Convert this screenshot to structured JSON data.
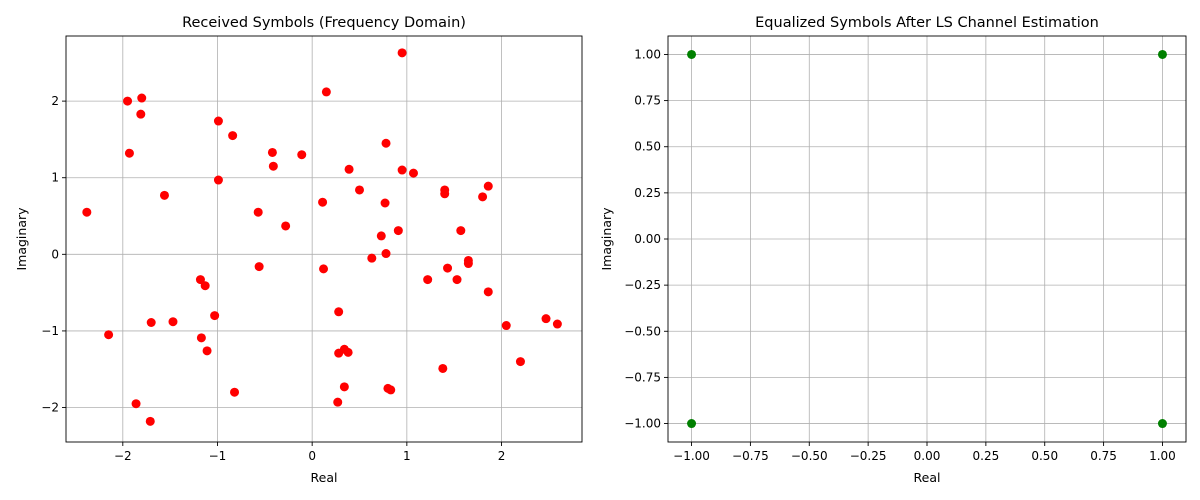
{
  "chart_data": [
    {
      "type": "scatter",
      "title": "Received Symbols (Frequency Domain)",
      "xlabel": "Real",
      "ylabel": "Imaginary",
      "xlim": [
        -2.6,
        2.85
      ],
      "ylim": [
        -2.45,
        2.85
      ],
      "xticks": [
        -2,
        -1,
        0,
        1,
        2
      ],
      "xtick_labels": [
        "−2",
        "−1",
        "0",
        "1",
        "2"
      ],
      "yticks": [
        -2,
        -1,
        0,
        1,
        2
      ],
      "ytick_labels": [
        "−2",
        "−1",
        "0",
        "1",
        "2"
      ],
      "grid": true,
      "color": "#ff0000",
      "points": [
        [
          -2.38,
          0.55
        ],
        [
          -2.15,
          -1.05
        ],
        [
          -1.95,
          2.0
        ],
        [
          -1.93,
          1.32
        ],
        [
          -1.8,
          2.04
        ],
        [
          -1.81,
          1.83
        ],
        [
          -1.86,
          -1.95
        ],
        [
          -1.7,
          -0.89
        ],
        [
          -1.71,
          -2.18
        ],
        [
          -1.56,
          0.77
        ],
        [
          -1.47,
          -0.88
        ],
        [
          -1.18,
          -0.33
        ],
        [
          -1.17,
          -1.09
        ],
        [
          -1.13,
          -0.41
        ],
        [
          -1.11,
          -1.26
        ],
        [
          -1.03,
          -0.8
        ],
        [
          -0.99,
          1.74
        ],
        [
          -0.99,
          0.97
        ],
        [
          -0.84,
          1.55
        ],
        [
          -0.82,
          -1.8
        ],
        [
          -0.57,
          0.55
        ],
        [
          -0.56,
          -0.16
        ],
        [
          -0.42,
          1.33
        ],
        [
          -0.41,
          1.15
        ],
        [
          -0.28,
          0.37
        ],
        [
          -0.11,
          1.3
        ],
        [
          0.11,
          0.68
        ],
        [
          0.12,
          -0.19
        ],
        [
          0.15,
          2.12
        ],
        [
          0.28,
          -0.75
        ],
        [
          0.28,
          -1.29
        ],
        [
          0.27,
          -1.93
        ],
        [
          0.34,
          -1.24
        ],
        [
          0.38,
          -1.28
        ],
        [
          0.34,
          -1.73
        ],
        [
          0.39,
          1.11
        ],
        [
          0.5,
          0.84
        ],
        [
          0.63,
          -0.05
        ],
        [
          0.73,
          0.24
        ],
        [
          0.77,
          0.67
        ],
        [
          0.78,
          0.01
        ],
        [
          0.78,
          1.45
        ],
        [
          0.8,
          -1.75
        ],
        [
          0.83,
          -1.77
        ],
        [
          0.91,
          0.31
        ],
        [
          0.95,
          1.1
        ],
        [
          0.95,
          2.63
        ],
        [
          1.07,
          1.06
        ],
        [
          1.22,
          -0.33
        ],
        [
          1.38,
          -1.49
        ],
        [
          1.4,
          0.84
        ],
        [
          1.4,
          0.79
        ],
        [
          1.43,
          -0.18
        ],
        [
          1.53,
          -0.33
        ],
        [
          1.57,
          0.31
        ],
        [
          1.65,
          -0.08
        ],
        [
          1.65,
          -0.12
        ],
        [
          1.8,
          0.75
        ],
        [
          1.86,
          0.89
        ],
        [
          1.86,
          -0.49
        ],
        [
          2.05,
          -0.93
        ],
        [
          2.2,
          -1.4
        ],
        [
          2.47,
          -0.84
        ],
        [
          2.59,
          -0.91
        ]
      ]
    },
    {
      "type": "scatter",
      "title": "Equalized Symbols After LS Channel Estimation",
      "xlabel": "Real",
      "ylabel": "Imaginary",
      "xlim": [
        -1.1,
        1.1
      ],
      "ylim": [
        -1.1,
        1.1
      ],
      "xticks": [
        -1.0,
        -0.75,
        -0.5,
        -0.25,
        0.0,
        0.25,
        0.5,
        0.75,
        1.0
      ],
      "xtick_labels": [
        "−1.00",
        "−0.75",
        "−0.50",
        "−0.25",
        "0.00",
        "0.25",
        "0.50",
        "0.75",
        "1.00"
      ],
      "yticks": [
        1.0,
        0.75,
        0.5,
        0.25,
        0.0,
        -0.25,
        -0.5,
        -0.75,
        -1.0
      ],
      "ytick_labels": [
        "1.00",
        "0.75",
        "0.50",
        "0.25",
        "0.00",
        "−0.25",
        "−0.50",
        "−0.75",
        "−1.00"
      ],
      "grid": true,
      "color": "#008000",
      "points": [
        [
          -1,
          1
        ],
        [
          1,
          1
        ],
        [
          -1,
          -1
        ],
        [
          1,
          -1
        ]
      ]
    }
  ]
}
